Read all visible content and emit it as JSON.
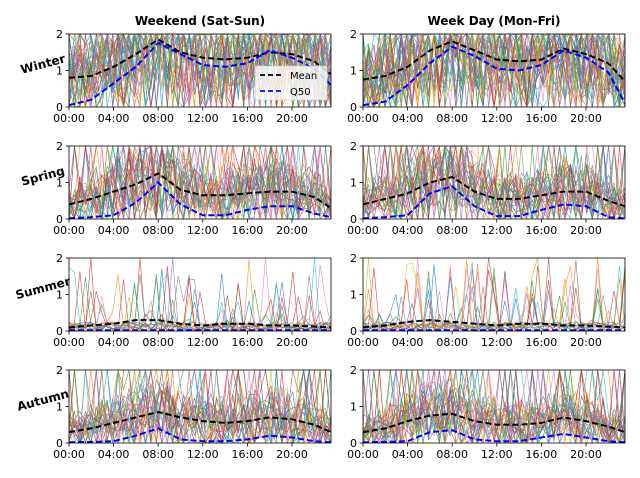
{
  "figure": {
    "col_titles": [
      "Weekend (Sat-Sun)",
      "Week Day (Mon-Fri)"
    ],
    "row_labels": [
      "Winter",
      "Spring",
      "Summer",
      "Autumn"
    ],
    "x_tick_labels": [
      "00:00",
      "04:00",
      "08:00",
      "12:00",
      "16:00",
      "20:00"
    ],
    "y_tick_labels": [
      "0",
      "1",
      "2"
    ],
    "legend": {
      "mean_label": "Mean",
      "q50_label": "Q50"
    }
  },
  "chart_data": [
    {
      "type": "line",
      "title": "Weekend (Sat-Sun)",
      "row": "Winter",
      "xlim": [
        "00:00",
        "23:30"
      ],
      "ylim": [
        0,
        2
      ],
      "x": [
        "00:00",
        "02:00",
        "04:00",
        "06:00",
        "08:00",
        "10:00",
        "12:00",
        "14:00",
        "16:00",
        "18:00",
        "20:00",
        "22:00",
        "23:30"
      ],
      "series": [
        {
          "name": "Mean",
          "values": [
            0.8,
            0.85,
            1.1,
            1.45,
            1.85,
            1.5,
            1.35,
            1.3,
            1.35,
            1.5,
            1.45,
            1.25,
            0.9
          ]
        },
        {
          "name": "Q50",
          "values": [
            0.05,
            0.2,
            0.65,
            1.1,
            1.75,
            1.45,
            1.15,
            1.1,
            1.2,
            1.55,
            1.35,
            1.05,
            0.6
          ]
        }
      ],
      "legend_position": "bottom-right"
    },
    {
      "type": "line",
      "title": "Week Day (Mon-Fri)",
      "row": "Winter",
      "xlim": [
        "00:00",
        "23:30"
      ],
      "ylim": [
        0,
        2
      ],
      "x": [
        "00:00",
        "02:00",
        "04:00",
        "06:00",
        "08:00",
        "10:00",
        "12:00",
        "14:00",
        "16:00",
        "18:00",
        "20:00",
        "22:00",
        "23:30"
      ],
      "series": [
        {
          "name": "Mean",
          "values": [
            0.75,
            0.85,
            1.1,
            1.55,
            1.8,
            1.55,
            1.3,
            1.25,
            1.3,
            1.6,
            1.45,
            1.2,
            0.7
          ]
        },
        {
          "name": "Q50",
          "values": [
            0.05,
            0.15,
            0.6,
            1.2,
            1.65,
            1.4,
            1.05,
            1.0,
            1.15,
            1.55,
            1.35,
            0.95,
            0.1
          ]
        }
      ]
    },
    {
      "type": "line",
      "row": "Spring",
      "xlim": [
        "00:00",
        "23:30"
      ],
      "ylim": [
        0,
        2
      ],
      "x": [
        "00:00",
        "02:00",
        "04:00",
        "06:00",
        "08:00",
        "10:00",
        "12:00",
        "14:00",
        "16:00",
        "18:00",
        "20:00",
        "22:00",
        "23:30"
      ],
      "series": [
        {
          "name": "Mean",
          "values": [
            0.4,
            0.55,
            0.75,
            0.95,
            1.25,
            0.8,
            0.65,
            0.65,
            0.7,
            0.75,
            0.75,
            0.6,
            0.3
          ]
        },
        {
          "name": "Q50",
          "values": [
            0.02,
            0.05,
            0.1,
            0.45,
            1.0,
            0.4,
            0.1,
            0.1,
            0.25,
            0.35,
            0.35,
            0.15,
            0.05
          ]
        }
      ]
    },
    {
      "type": "line",
      "row": "Spring",
      "xlim": [
        "00:00",
        "23:30"
      ],
      "ylim": [
        0,
        2
      ],
      "x": [
        "00:00",
        "02:00",
        "04:00",
        "06:00",
        "08:00",
        "10:00",
        "12:00",
        "14:00",
        "16:00",
        "18:00",
        "20:00",
        "22:00",
        "23:30"
      ],
      "series": [
        {
          "name": "Mean",
          "values": [
            0.4,
            0.55,
            0.7,
            1.0,
            1.15,
            0.75,
            0.55,
            0.55,
            0.65,
            0.75,
            0.75,
            0.5,
            0.35
          ]
        },
        {
          "name": "Q50",
          "values": [
            0.02,
            0.05,
            0.1,
            0.7,
            0.9,
            0.35,
            0.08,
            0.08,
            0.25,
            0.4,
            0.35,
            0.05,
            0.02
          ]
        }
      ]
    },
    {
      "type": "line",
      "row": "Summer",
      "xlim": [
        "00:00",
        "23:30"
      ],
      "ylim": [
        0,
        2
      ],
      "x": [
        "00:00",
        "02:00",
        "04:00",
        "06:00",
        "08:00",
        "10:00",
        "12:00",
        "14:00",
        "16:00",
        "18:00",
        "20:00",
        "22:00",
        "23:30"
      ],
      "series": [
        {
          "name": "Mean",
          "values": [
            0.1,
            0.15,
            0.2,
            0.3,
            0.3,
            0.2,
            0.15,
            0.2,
            0.2,
            0.15,
            0.15,
            0.12,
            0.1
          ]
        },
        {
          "name": "Q50",
          "values": [
            0.02,
            0.02,
            0.02,
            0.02,
            0.02,
            0.02,
            0.02,
            0.02,
            0.02,
            0.02,
            0.02,
            0.02,
            0.02
          ]
        }
      ]
    },
    {
      "type": "line",
      "row": "Summer",
      "xlim": [
        "00:00",
        "23:30"
      ],
      "ylim": [
        0,
        2
      ],
      "x": [
        "00:00",
        "02:00",
        "04:00",
        "06:00",
        "08:00",
        "10:00",
        "12:00",
        "14:00",
        "16:00",
        "18:00",
        "20:00",
        "22:00",
        "23:30"
      ],
      "series": [
        {
          "name": "Mean",
          "values": [
            0.1,
            0.15,
            0.25,
            0.3,
            0.25,
            0.2,
            0.15,
            0.2,
            0.2,
            0.15,
            0.15,
            0.12,
            0.1
          ]
        },
        {
          "name": "Q50",
          "values": [
            0.02,
            0.02,
            0.02,
            0.02,
            0.02,
            0.02,
            0.02,
            0.02,
            0.02,
            0.02,
            0.02,
            0.02,
            0.02
          ]
        }
      ]
    },
    {
      "type": "line",
      "row": "Autumn",
      "xlim": [
        "00:00",
        "23:30"
      ],
      "ylim": [
        0,
        2
      ],
      "x": [
        "00:00",
        "02:00",
        "04:00",
        "06:00",
        "08:00",
        "10:00",
        "12:00",
        "14:00",
        "16:00",
        "18:00",
        "20:00",
        "22:00",
        "23:30"
      ],
      "series": [
        {
          "name": "Mean",
          "values": [
            0.3,
            0.4,
            0.55,
            0.7,
            0.85,
            0.7,
            0.6,
            0.55,
            0.6,
            0.7,
            0.65,
            0.5,
            0.3
          ]
        },
        {
          "name": "Q50",
          "values": [
            0.02,
            0.03,
            0.05,
            0.2,
            0.4,
            0.1,
            0.05,
            0.05,
            0.1,
            0.2,
            0.15,
            0.05,
            0.02
          ]
        }
      ]
    },
    {
      "type": "line",
      "row": "Autumn",
      "xlim": [
        "00:00",
        "23:30"
      ],
      "ylim": [
        0,
        2
      ],
      "x": [
        "00:00",
        "02:00",
        "04:00",
        "06:00",
        "08:00",
        "10:00",
        "12:00",
        "14:00",
        "16:00",
        "18:00",
        "20:00",
        "22:00",
        "23:30"
      ],
      "series": [
        {
          "name": "Mean",
          "values": [
            0.3,
            0.4,
            0.6,
            0.75,
            0.8,
            0.6,
            0.5,
            0.5,
            0.55,
            0.7,
            0.6,
            0.45,
            0.3
          ]
        },
        {
          "name": "Q50",
          "values": [
            0.02,
            0.03,
            0.05,
            0.3,
            0.35,
            0.1,
            0.05,
            0.05,
            0.15,
            0.25,
            0.15,
            0.05,
            0.02
          ]
        }
      ]
    }
  ],
  "colors": {
    "mean": "#000000",
    "q50": "#0000ff",
    "individual_lines": [
      "#1f77b4",
      "#ff7f0e",
      "#2ca02c",
      "#d62728",
      "#9467bd",
      "#8c564b",
      "#e377c2",
      "#7f7f7f",
      "#bcbd22",
      "#17becf"
    ]
  }
}
